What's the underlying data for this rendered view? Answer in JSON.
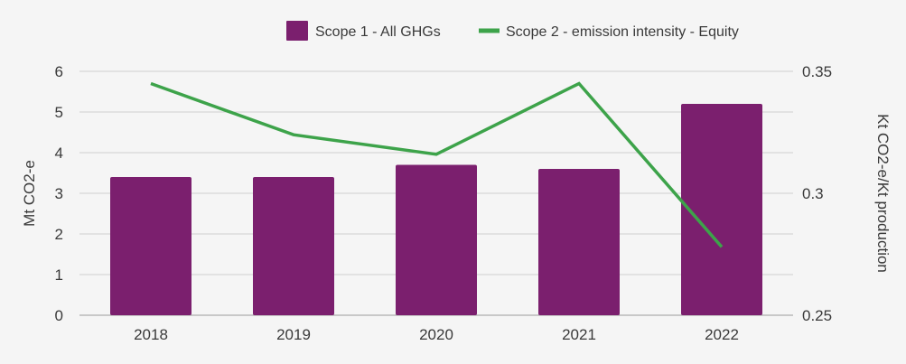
{
  "chart_data": {
    "type": "bar",
    "categories": [
      "2018",
      "2019",
      "2020",
      "2021",
      "2022"
    ],
    "series": [
      {
        "name": "Scope 1 - All GHGs",
        "type": "bar",
        "axis": "left",
        "color": "#7b1f6e",
        "values": [
          3.4,
          3.4,
          3.7,
          3.6,
          5.2
        ]
      },
      {
        "name": "Scope 2 - emission intensity - Equity",
        "type": "line",
        "axis": "right",
        "color": "#3da34a",
        "values": [
          0.345,
          0.324,
          0.316,
          0.345,
          0.278
        ]
      }
    ],
    "ylabel": "Mt CO2-e",
    "ylim": [
      0,
      6
    ],
    "yticks": [
      "0",
      "1",
      "2",
      "3",
      "4",
      "5",
      "6"
    ],
    "y2label": "Kt CO2-e/Kt production",
    "y2lim": [
      0.25,
      0.35
    ],
    "y2ticks": [
      "0.25",
      "0.3",
      "0.35"
    ],
    "grid": true,
    "legend_position": "top"
  }
}
